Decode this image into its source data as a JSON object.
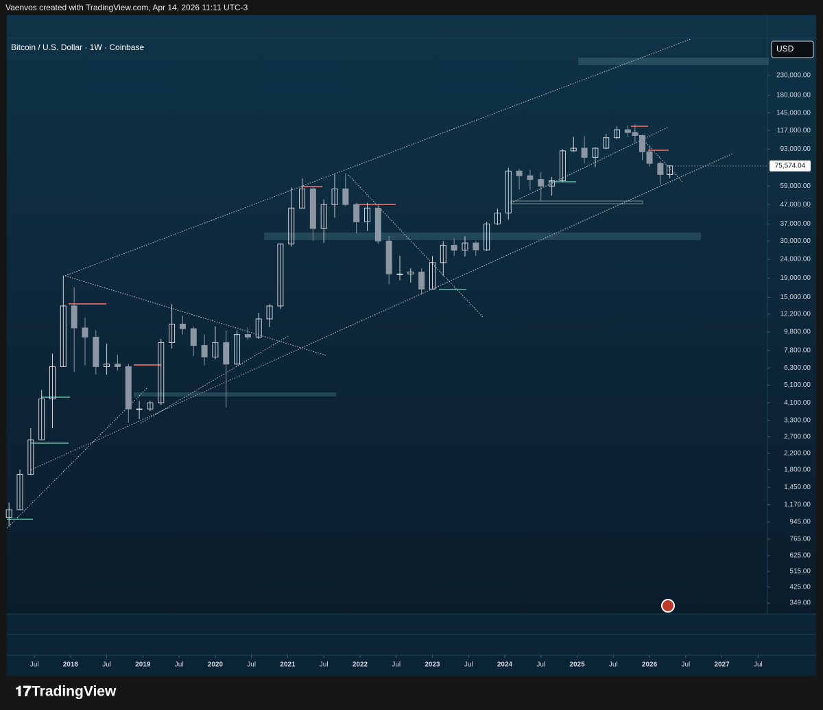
{
  "header": {
    "text": "Vaenvos created with TradingView.com, Apr 14, 2026 11:11 UTC-3"
  },
  "footer": {
    "logo": "TradingView"
  },
  "chart_data": {
    "type": "candlestick",
    "title": "Bitcoin / U.S. Dollar · 1W · Coinbase",
    "currency": "USD",
    "color": "#d1d4dc",
    "log_scale": true,
    "x": [
      2017.15,
      2017.3,
      2017.45,
      2017.6,
      2017.75,
      2017.9,
      2018.05,
      2018.2,
      2018.35,
      2018.5,
      2018.65,
      2018.8,
      2018.95,
      2019.1,
      2019.25,
      2019.4,
      2019.55,
      2019.7,
      2019.85,
      2020.0,
      2020.15,
      2020.3,
      2020.45,
      2020.6,
      2020.75,
      2020.9,
      2021.05,
      2021.2,
      2021.35,
      2021.5,
      2021.65,
      2021.8,
      2021.95,
      2022.1,
      2022.25,
      2022.4,
      2022.55,
      2022.7,
      2022.85,
      2023.0,
      2023.15,
      2023.3,
      2023.45,
      2023.6,
      2023.75,
      2023.9,
      2024.05,
      2024.2,
      2024.35,
      2024.5,
      2024.65,
      2024.8,
      2024.95,
      2025.1,
      2025.25,
      2025.4,
      2025.55,
      2025.7,
      2025.8,
      2025.9,
      2026.0,
      2026.15,
      2026.28
    ],
    "open": [
      1000,
      1100,
      1700,
      2600,
      4300,
      6400,
      13500,
      10300,
      9200,
      6400,
      6600,
      6400,
      3800,
      3800,
      4100,
      8600,
      10800,
      10200,
      8300,
      7200,
      8600,
      6600,
      9500,
      9200,
      11500,
      13500,
      28900,
      45000,
      57000,
      35000,
      47000,
      57000,
      47000,
      38000,
      45000,
      30000,
      20000,
      20000,
      20500,
      16600,
      23000,
      28500,
      26800,
      29300,
      26900,
      37000,
      42300,
      71000,
      67000,
      64000,
      59000,
      63000,
      91000,
      94000,
      84000,
      94000,
      107000,
      118000,
      114000,
      110000,
      90000,
      78000,
      68000
    ],
    "high": [
      1200,
      1800,
      3000,
      4800,
      7500,
      19600,
      17000,
      11700,
      10000,
      8500,
      7400,
      6600,
      4200,
      4200,
      9000,
      13800,
      12000,
      10500,
      9500,
      10500,
      10000,
      10000,
      10400,
      12400,
      13800,
      29000,
      58000,
      64800,
      59000,
      50000,
      69000,
      69000,
      48000,
      48000,
      47000,
      32000,
      25000,
      21500,
      21500,
      25000,
      30000,
      31000,
      31800,
      30000,
      38000,
      44700,
      73800,
      73000,
      72000,
      70000,
      66000,
      93000,
      108000,
      109000,
      95000,
      112000,
      123000,
      124000,
      126000,
      111000,
      97000,
      80000,
      76000
    ],
    "low": [
      900,
      1100,
      1700,
      2600,
      3000,
      6400,
      6000,
      6500,
      5800,
      5800,
      6100,
      3200,
      3350,
      3700,
      4000,
      8000,
      9500,
      7300,
      6500,
      7000,
      3850,
      6500,
      8900,
      9000,
      10400,
      13000,
      28000,
      45000,
      30000,
      29300,
      40000,
      46000,
      33000,
      34000,
      29000,
      17600,
      18500,
      18000,
      15500,
      16500,
      19500,
      25000,
      24800,
      25000,
      26500,
      36500,
      39000,
      56500,
      56000,
      49000,
      52500,
      62000,
      90000,
      78000,
      74500,
      93000,
      105000,
      108000,
      101000,
      81000,
      75000,
      60000,
      65000
    ],
    "close": [
      1100,
      1700,
      2600,
      4300,
      6400,
      13500,
      10300,
      9200,
      6400,
      6600,
      6400,
      3800,
      3800,
      4100,
      8600,
      10800,
      10200,
      8300,
      7200,
      8600,
      6600,
      9500,
      9200,
      11500,
      13500,
      28900,
      45000,
      57000,
      35000,
      47000,
      57000,
      47000,
      38000,
      45000,
      30000,
      20000,
      20000,
      20500,
      16600,
      23000,
      28500,
      26800,
      29300,
      26900,
      37000,
      42300,
      71000,
      67000,
      64000,
      59000,
      63000,
      91000,
      94000,
      84000,
      94000,
      107000,
      118000,
      114000,
      110000,
      90000,
      78000,
      68000,
      75574.04
    ],
    "last_price": {
      "value": 75574.04,
      "label": "75,574.04"
    },
    "xlim": [
      2017.12,
      2027.62
    ],
    "xticks": [
      {
        "value": 2017.5,
        "label": "Jul"
      },
      2018,
      {
        "value": 2018.5,
        "label": "Jul"
      },
      2019,
      {
        "value": 2019.5,
        "label": "Jul"
      },
      2020,
      {
        "value": 2020.5,
        "label": "Jul"
      },
      2021,
      {
        "value": 2021.5,
        "label": "Jul"
      },
      2022,
      {
        "value": 2022.5,
        "label": "Jul"
      },
      2023,
      {
        "value": 2023.5,
        "label": "Jul"
      },
      2024,
      {
        "value": 2024.5,
        "label": "Jul"
      },
      2025,
      {
        "value": 2025.5,
        "label": "Jul"
      },
      2026,
      {
        "value": 2026.5,
        "label": "Jul"
      },
      2027,
      {
        "value": 2027.5,
        "label": "Jul"
      }
    ],
    "ylim": [
      305,
      366000
    ],
    "yticks": [
      {
        "value": 230000,
        "label": "230,000.00"
      },
      {
        "value": 180000,
        "label": "180,000.00"
      },
      {
        "value": 145000,
        "label": "145,000.00"
      },
      {
        "value": 117000,
        "label": "117,000.00"
      },
      {
        "value": 93000,
        "label": "93,000.00"
      },
      {
        "value": 59000,
        "label": "59,000.00"
      },
      {
        "value": 47000,
        "label": "47,000.00"
      },
      {
        "value": 37000,
        "label": "37,000.00"
      },
      {
        "value": 30000,
        "label": "30,000.00"
      },
      {
        "value": 24000,
        "label": "24,000.00"
      },
      {
        "value": 19000,
        "label": "19,000.00"
      },
      {
        "value": 15000,
        "label": "15,000.00"
      },
      {
        "value": 12200,
        "label": "12,200.00"
      },
      {
        "value": 9800,
        "label": "9,800.00"
      },
      {
        "value": 7800,
        "label": "7,800.00"
      },
      {
        "value": 6300,
        "label": "6,300.00"
      },
      {
        "value": 5100,
        "label": "5,100.00"
      },
      {
        "value": 4100,
        "label": "4,100.00"
      },
      {
        "value": 3300,
        "label": "3,300.00"
      },
      {
        "value": 2700,
        "label": "2,700.00"
      },
      {
        "value": 2200,
        "label": "2,200.00"
      },
      {
        "value": 1800,
        "label": "1,800.00"
      },
      {
        "value": 1450,
        "label": "1,450.00"
      },
      {
        "value": 1170,
        "label": "1,170.00"
      },
      {
        "value": 945,
        "label": "945.00"
      },
      {
        "value": 765,
        "label": "765.00"
      },
      {
        "value": 625,
        "label": "625.00"
      },
      {
        "value": 515,
        "label": "515.00"
      },
      {
        "value": 425,
        "label": "425.00"
      },
      {
        "value": 349,
        "label": "349.00"
      }
    ]
  }
}
